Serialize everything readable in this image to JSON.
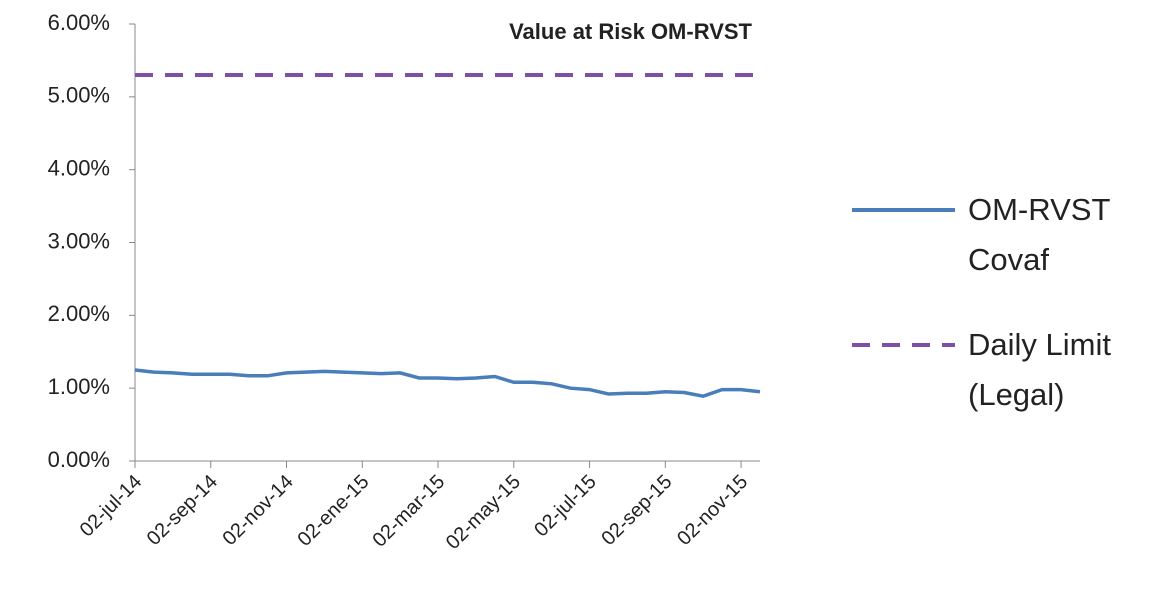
{
  "chart_data": {
    "type": "line",
    "title": "Value at Risk OM-RVST",
    "categories": [
      "02-jul-14",
      null,
      null,
      null,
      "02-sep-14",
      null,
      null,
      null,
      "02-nov-14",
      null,
      null,
      null,
      "02-ene-15",
      null,
      null,
      null,
      "02-mar-15",
      null,
      null,
      null,
      "02-may-15",
      null,
      null,
      null,
      "02-jul-15",
      null,
      null,
      null,
      "02-sep-15",
      null,
      null,
      null,
      "02-nov-15",
      null
    ],
    "series": [
      {
        "name": "OM-RVST Covaf",
        "color": "#4a7ebb",
        "dash": false,
        "values": [
          1.25,
          1.22,
          1.21,
          1.19,
          1.19,
          1.19,
          1.17,
          1.17,
          1.21,
          1.22,
          1.23,
          1.22,
          1.21,
          1.2,
          1.21,
          1.14,
          1.14,
          1.13,
          1.14,
          1.16,
          1.08,
          1.08,
          1.06,
          1.0,
          0.98,
          0.92,
          0.93,
          0.93,
          0.95,
          0.94,
          0.89,
          0.98,
          0.98,
          0.95
        ]
      },
      {
        "name": "Daily Limit (Legal)",
        "color": "#7f4fa6",
        "dash": true,
        "values": [
          5.3,
          5.3,
          5.3,
          5.3,
          5.3,
          5.3,
          5.3,
          5.3,
          5.3,
          5.3,
          5.3,
          5.3,
          5.3,
          5.3,
          5.3,
          5.3,
          5.3,
          5.3,
          5.3,
          5.3,
          5.3,
          5.3,
          5.3,
          5.3,
          5.3,
          5.3,
          5.3,
          5.3,
          5.3,
          5.3,
          5.3,
          5.3,
          5.3,
          5.3
        ]
      }
    ],
    "ylim": [
      0,
      6
    ],
    "yticks": [
      {
        "value": 0,
        "label": "0.00%"
      },
      {
        "value": 1,
        "label": "1.00%"
      },
      {
        "value": 2,
        "label": "2.00%"
      },
      {
        "value": 3,
        "label": "3.00%"
      },
      {
        "value": 4,
        "label": "4.00%"
      },
      {
        "value": 5,
        "label": "5.00%"
      },
      {
        "value": 6,
        "label": "6.00%"
      }
    ],
    "grid": false,
    "legend": "right"
  }
}
